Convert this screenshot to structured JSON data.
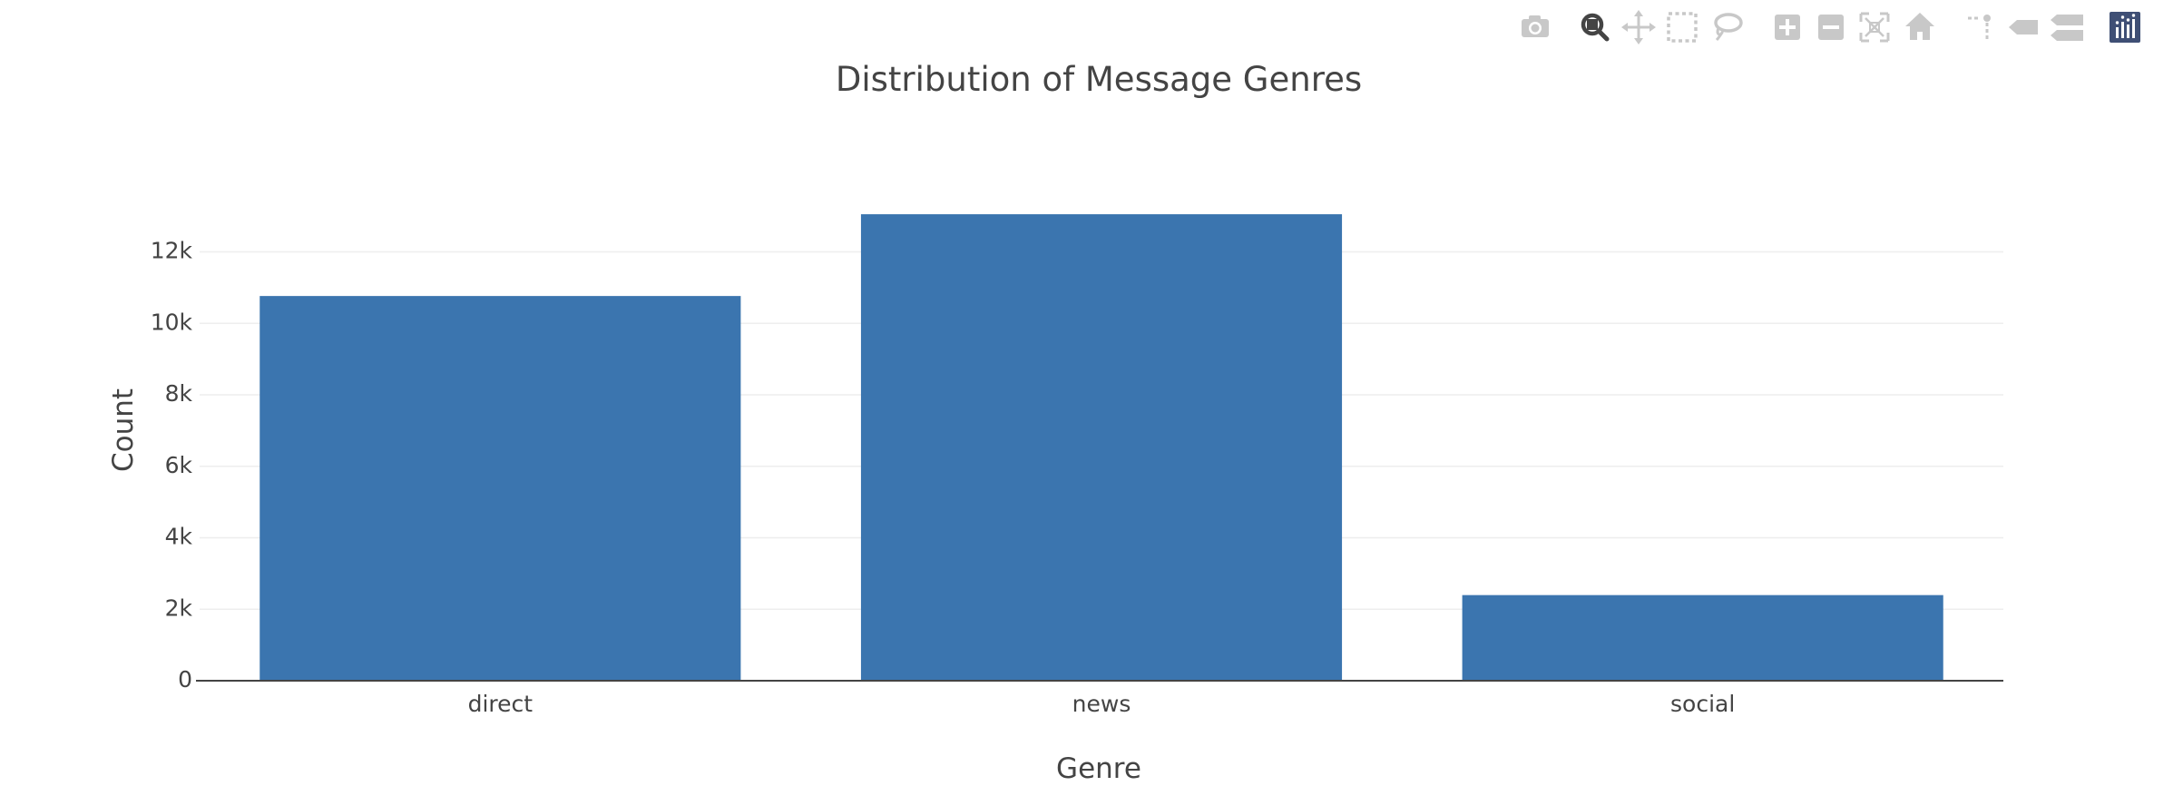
{
  "modebar": {
    "buttons": [
      {
        "icon": "camera-icon",
        "label": "Download plot as a png",
        "active": false
      },
      {
        "icon": "zoom-icon",
        "label": "Zoom",
        "active": true
      },
      {
        "icon": "pan-icon",
        "label": "Pan",
        "active": false
      },
      {
        "icon": "box-select-icon",
        "label": "Box Select",
        "active": false
      },
      {
        "icon": "lasso-select-icon",
        "label": "Lasso Select",
        "active": false
      },
      {
        "icon": "zoom-in-icon",
        "label": "Zoom in",
        "active": false
      },
      {
        "icon": "zoom-out-icon",
        "label": "Zoom out",
        "active": false
      },
      {
        "icon": "autoscale-icon",
        "label": "Autoscale",
        "active": false
      },
      {
        "icon": "home-icon",
        "label": "Reset axes",
        "active": false
      },
      {
        "icon": "spike-lines-icon",
        "label": "Toggle Spike Lines",
        "active": false
      },
      {
        "icon": "hover-closest-icon",
        "label": "Show closest data on hover",
        "active": false
      },
      {
        "icon": "hover-compare-icon",
        "label": "Compare data on hover",
        "active": false
      },
      {
        "icon": "plotly-logo-icon",
        "label": "Produced with Plotly",
        "active": false
      }
    ],
    "colors": {
      "idle": "#c8c8c8",
      "active": "#444444",
      "logo_bg": "#3f4f75"
    }
  },
  "chart_data": {
    "type": "bar",
    "title": "Distribution of Message Genres",
    "xlabel": "Genre",
    "ylabel": "Count",
    "categories": [
      "direct",
      "news",
      "social"
    ],
    "values": [
      10766,
      13054,
      2396
    ],
    "ylim": [
      0,
      13741
    ],
    "yticks": [
      0,
      2000,
      4000,
      6000,
      8000,
      10000,
      12000
    ],
    "ytick_labels": [
      "0",
      "2k",
      "4k",
      "6k",
      "8k",
      "10k",
      "12k"
    ],
    "bar_color": "#3b75af",
    "grid": true,
    "legend": "none"
  }
}
